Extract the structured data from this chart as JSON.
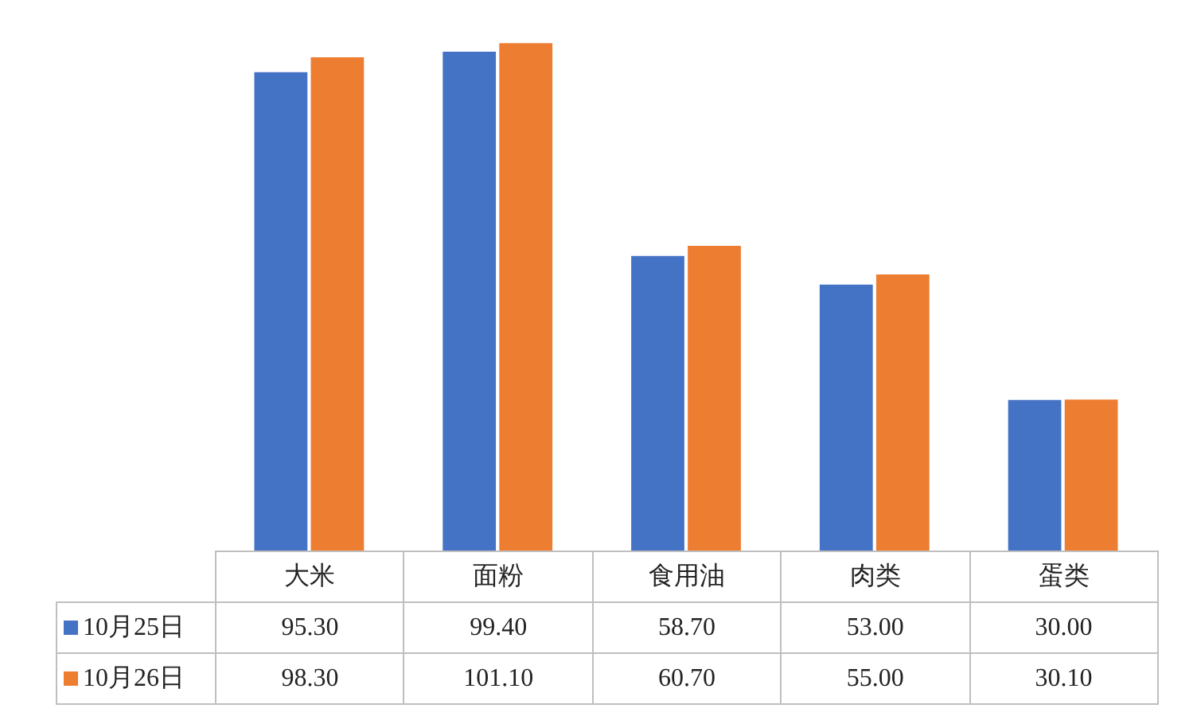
{
  "chart_data": {
    "type": "bar",
    "categories": [
      "大米",
      "面粉",
      "食用油",
      "肉类",
      "蛋类"
    ],
    "series": [
      {
        "name": "10月25日",
        "color": "#4472c4",
        "values": [
          95.3,
          99.4,
          58.7,
          53.0,
          30.0
        ],
        "value_labels": [
          "95.30",
          "99.40",
          "58.70",
          "53.00",
          "30.00"
        ]
      },
      {
        "name": "10月26日",
        "color": "#ed7d31",
        "values": [
          98.3,
          101.1,
          60.7,
          55.0,
          30.1
        ],
        "value_labels": [
          "98.30",
          "101.10",
          "60.70",
          "55.00",
          "30.10"
        ]
      }
    ],
    "legend": "bottom left"
  }
}
